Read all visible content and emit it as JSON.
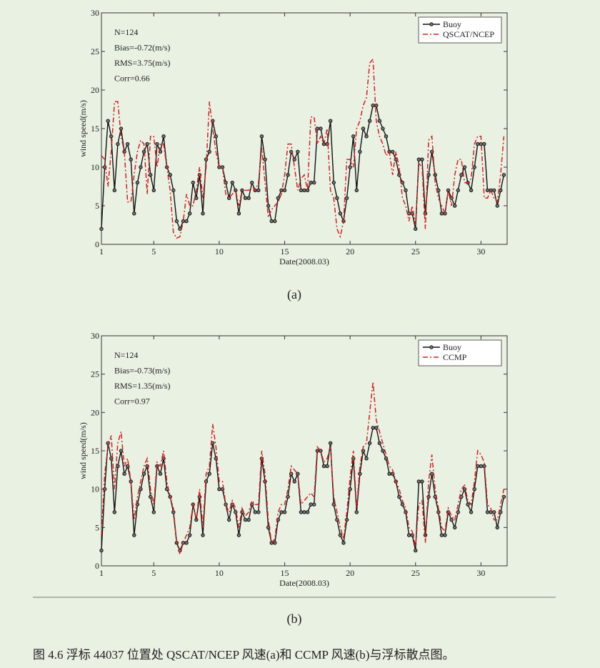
{
  "chart_data": [
    {
      "type": "line",
      "panel_label": "(a)",
      "y_label": "wind speed(m/s)",
      "x_label": "Date(2008.03)",
      "annotations": [
        "N=124",
        "Bias=-0.72(m/s)",
        "RMS=3.75(m/s)",
        "Corr=0.66"
      ],
      "legend": "upper right",
      "xlim": [
        1,
        32
      ],
      "xticks": [
        1,
        5,
        10,
        15,
        20,
        25,
        30
      ],
      "ylim": [
        0,
        30
      ],
      "yticks": [
        0,
        5,
        10,
        15,
        20,
        25,
        30
      ],
      "x": [
        1,
        1.25,
        1.5,
        1.75,
        2,
        2.25,
        2.5,
        2.75,
        3,
        3.25,
        3.5,
        3.75,
        4,
        4.25,
        4.5,
        4.75,
        5,
        5.25,
        5.5,
        5.75,
        6,
        6.25,
        6.5,
        6.75,
        7,
        7.25,
        7.5,
        7.75,
        8,
        8.25,
        8.5,
        8.75,
        9,
        9.25,
        9.5,
        9.75,
        10,
        10.25,
        10.5,
        10.75,
        11,
        11.25,
        11.5,
        11.75,
        12,
        12.25,
        12.5,
        12.75,
        13,
        13.25,
        13.5,
        13.75,
        14,
        14.25,
        14.5,
        14.75,
        15,
        15.25,
        15.5,
        15.75,
        16,
        16.25,
        16.5,
        16.75,
        17,
        17.25,
        17.5,
        17.75,
        18,
        18.25,
        18.5,
        18.75,
        19,
        19.25,
        19.5,
        19.75,
        20,
        20.25,
        20.5,
        20.75,
        21,
        21.25,
        21.5,
        21.75,
        22,
        22.25,
        22.5,
        22.75,
        23,
        23.25,
        23.5,
        23.75,
        24,
        24.25,
        24.5,
        24.75,
        25,
        25.25,
        25.5,
        25.75,
        26,
        26.25,
        26.5,
        26.75,
        27,
        27.25,
        27.5,
        27.75,
        28,
        28.25,
        28.5,
        28.75,
        29,
        29.25,
        29.5,
        29.75,
        30,
        30.25,
        30.5,
        30.75,
        31,
        31.25,
        31.5,
        31.75
      ],
      "series": [
        {
          "name": "Buoy",
          "color": "#111111",
          "style": "solid",
          "marker": true,
          "values": [
            2,
            10,
            16,
            14,
            7,
            13,
            15,
            12,
            13,
            11,
            4,
            8,
            10,
            12,
            13,
            9,
            7,
            13,
            12,
            14,
            10,
            9,
            7,
            3,
            2,
            3,
            3,
            4,
            8,
            6,
            9,
            4,
            11,
            12,
            16,
            14,
            10,
            10,
            8,
            6,
            8,
            7,
            4,
            7,
            6,
            6,
            8,
            7,
            7,
            14,
            11,
            5,
            3,
            3,
            6,
            7,
            7,
            9,
            12,
            11,
            12,
            7,
            7,
            7,
            8,
            8,
            15,
            15,
            13,
            13,
            16,
            8,
            6,
            4,
            3,
            6,
            10,
            14,
            7,
            12,
            15,
            14,
            16,
            18,
            18,
            16,
            15,
            14,
            12,
            12,
            11,
            9,
            8,
            7,
            4,
            4,
            2,
            11,
            11,
            4,
            9,
            12,
            9,
            7,
            4,
            4,
            7,
            6,
            5,
            7,
            9,
            10,
            8,
            7,
            10,
            13,
            13,
            13,
            7,
            7,
            7,
            5,
            7,
            9
          ]
        },
        {
          "name": "QSCAT/NCEP",
          "color": "#d42020",
          "style": "dashdot",
          "marker": false,
          "values": [
            11.5,
            11,
            7.5,
            12,
            18.5,
            18.5,
            14,
            12,
            5.5,
            5.5,
            9,
            12,
            13.5,
            13,
            6.5,
            14,
            14,
            10,
            13,
            13,
            10,
            7,
            1.5,
            0.8,
            1,
            3,
            6.5,
            5,
            5,
            7,
            10,
            6,
            10,
            18.5,
            15,
            12,
            10,
            10,
            6.5,
            6,
            6.5,
            7,
            5,
            7,
            7,
            7,
            7.5,
            7,
            8,
            12.5,
            8,
            3.5,
            4.5,
            5,
            5.5,
            6.5,
            9,
            13,
            13,
            10,
            7,
            8.5,
            9,
            7,
            16.5,
            16.5,
            13,
            14,
            13,
            15,
            7,
            6,
            2,
            1,
            3,
            11,
            11,
            10,
            15,
            16,
            18,
            19,
            23.5,
            24,
            16,
            14,
            13,
            11.5,
            12,
            9,
            12,
            10,
            6,
            5,
            3,
            5,
            2.5,
            10.5,
            10,
            2,
            13.5,
            14,
            8,
            6,
            5,
            4,
            7,
            5,
            9,
            11,
            11,
            8,
            8,
            8.5,
            13,
            14,
            14,
            6,
            6,
            7,
            6,
            5.5,
            9,
            14
          ]
        }
      ]
    },
    {
      "type": "line",
      "panel_label": "(b)",
      "y_label": "wind speed(m/s)",
      "x_label": "Date(2008.03)",
      "annotations": [
        "N=124",
        "Bias=-0.73(m/s)",
        "RMS=1.35(m/s)",
        "Corr=0.97"
      ],
      "legend": "upper right",
      "xlim": [
        1,
        32
      ],
      "xticks": [
        1,
        5,
        10,
        15,
        20,
        25,
        30
      ],
      "ylim": [
        0,
        30
      ],
      "yticks": [
        0,
        5,
        10,
        15,
        20,
        25,
        30
      ],
      "x": [
        1,
        1.25,
        1.5,
        1.75,
        2,
        2.25,
        2.5,
        2.75,
        3,
        3.25,
        3.5,
        3.75,
        4,
        4.25,
        4.5,
        4.75,
        5,
        5.25,
        5.5,
        5.75,
        6,
        6.25,
        6.5,
        6.75,
        7,
        7.25,
        7.5,
        7.75,
        8,
        8.25,
        8.5,
        8.75,
        9,
        9.25,
        9.5,
        9.75,
        10,
        10.25,
        10.5,
        10.75,
        11,
        11.25,
        11.5,
        11.75,
        12,
        12.25,
        12.5,
        12.75,
        13,
        13.25,
        13.5,
        13.75,
        14,
        14.25,
        14.5,
        14.75,
        15,
        15.25,
        15.5,
        15.75,
        16,
        16.25,
        16.5,
        16.75,
        17,
        17.25,
        17.5,
        17.75,
        18,
        18.25,
        18.5,
        18.75,
        19,
        19.25,
        19.5,
        19.75,
        20,
        20.25,
        20.5,
        20.75,
        21,
        21.25,
        21.5,
        21.75,
        22,
        22.25,
        22.5,
        22.75,
        23,
        23.25,
        23.5,
        23.75,
        24,
        24.25,
        24.5,
        24.75,
        25,
        25.25,
        25.5,
        25.75,
        26,
        26.25,
        26.5,
        26.75,
        27,
        27.25,
        27.5,
        27.75,
        28,
        28.25,
        28.5,
        28.75,
        29,
        29.25,
        29.5,
        29.75,
        30,
        30.25,
        30.5,
        30.75,
        31,
        31.25,
        31.5,
        31.75
      ],
      "series": [
        {
          "name": "Buoy",
          "color": "#111111",
          "style": "solid",
          "marker": true,
          "values": [
            2,
            10,
            16,
            14,
            7,
            13,
            15,
            12,
            13,
            11,
            4,
            8,
            10,
            12,
            13,
            9,
            7,
            13,
            12,
            14,
            10,
            9,
            7,
            3,
            2,
            3,
            3,
            4,
            8,
            6,
            9,
            4,
            11,
            12,
            16,
            14,
            10,
            10,
            8,
            6,
            8,
            7,
            4,
            7,
            6,
            6,
            8,
            7,
            7,
            14,
            11,
            5,
            3,
            3,
            6,
            7,
            7,
            9,
            12,
            11,
            12,
            7,
            7,
            7,
            8,
            8,
            15,
            15,
            13,
            13,
            16,
            8,
            6,
            4,
            3,
            6,
            10,
            14,
            7,
            12,
            15,
            14,
            16,
            18,
            18,
            16,
            15,
            14,
            12,
            12,
            11,
            9,
            8,
            7,
            4,
            4,
            2,
            11,
            11,
            4,
            9,
            12,
            9,
            7,
            4,
            4,
            7,
            6,
            5,
            7,
            9,
            10,
            8,
            7,
            10,
            13,
            13,
            13,
            7,
            7,
            7,
            5,
            7,
            9
          ]
        },
        {
          "name": "CCMP",
          "color": "#d42020",
          "style": "dashdot",
          "marker": false,
          "values": [
            4,
            12,
            15.5,
            17,
            10,
            16,
            17.5,
            13,
            14,
            11,
            6,
            9,
            11,
            13,
            14,
            10,
            8,
            13.5,
            13,
            15,
            11,
            9,
            7.5,
            3,
            1.5,
            3,
            4,
            5,
            8,
            6,
            10,
            5,
            12,
            13,
            18.5,
            15.5,
            11,
            11,
            8,
            7,
            8.5,
            7.5,
            5,
            7.5,
            6.5,
            7,
            8.5,
            8,
            8,
            15,
            12,
            6,
            3,
            3.5,
            7,
            8,
            8,
            10,
            13,
            12.5,
            12,
            8,
            8.5,
            9,
            9.5,
            9,
            15.5,
            15,
            13.5,
            14,
            15.5,
            9,
            7,
            5,
            3.5,
            7,
            11.5,
            15,
            7.5,
            13,
            15.5,
            16,
            20,
            24,
            19,
            17.5,
            16,
            14.5,
            13,
            12.5,
            11,
            10,
            8.5,
            7.5,
            5,
            4.5,
            2.5,
            8,
            8.5,
            3,
            11,
            14.5,
            10,
            7.5,
            5,
            4.5,
            7.5,
            6.5,
            6,
            8,
            10,
            10.5,
            8.5,
            8,
            11,
            15,
            14.5,
            13.5,
            8,
            7.5,
            6,
            6,
            8,
            10
          ]
        }
      ]
    }
  ],
  "caption": "图 4.6  浮标 44037 位置处 QSCAT/NCEP 风速(a)和 CCMP 风速(b)与浮标散点图。"
}
